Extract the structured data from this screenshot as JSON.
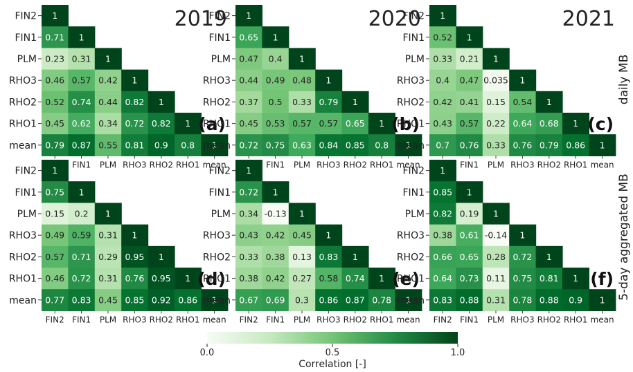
{
  "colors": {
    "low": "#f7fcf5",
    "high": "#00441b",
    "text_dark": "#222222",
    "text_light": "#ffffff"
  },
  "chart_data": {
    "type": "heatmap",
    "labels": [
      "FIN2",
      "FIN1",
      "PLM",
      "RHO3",
      "RHO2",
      "RHO1",
      "mean"
    ],
    "row_titles": [
      "daily MB",
      "5-day aggregated MB"
    ],
    "colorbar": {
      "title": "Correlation [-]",
      "range": [
        0.0,
        1.0
      ],
      "ticks": [
        "0.0",
        "0.5",
        "1.0"
      ]
    },
    "panels": [
      {
        "id": "(a)",
        "year": "2019",
        "matrix": [
          [
            "1"
          ],
          [
            "0.71",
            "1"
          ],
          [
            "0.23",
            "0.31",
            "1"
          ],
          [
            "0.46",
            "0.57",
            "0.42",
            "1"
          ],
          [
            "0.52",
            "0.74",
            "0.44",
            "0.82",
            "1"
          ],
          [
            "0.45",
            "0.62",
            "0.34",
            "0.72",
            "0.82",
            "1"
          ],
          [
            "0.79",
            "0.87",
            "0.55",
            "0.81",
            "0.9",
            "0.8",
            "1"
          ]
        ]
      },
      {
        "id": "(b)",
        "year": "2020",
        "matrix": [
          [
            "1"
          ],
          [
            "0.65",
            "1"
          ],
          [
            "0.47",
            "0.4",
            "1"
          ],
          [
            "0.44",
            "0.49",
            "0.48",
            "1"
          ],
          [
            "0.37",
            "0.5",
            "0.33",
            "0.79",
            "1"
          ],
          [
            "0.45",
            "0.53",
            "0.57",
            "0.57",
            "0.65",
            "1"
          ],
          [
            "0.72",
            "0.75",
            "0.63",
            "0.84",
            "0.85",
            "0.8",
            "1"
          ]
        ]
      },
      {
        "id": "(c)",
        "year": "2021",
        "matrix": [
          [
            "1"
          ],
          [
            "0.52",
            "1"
          ],
          [
            "0.33",
            "0.21",
            "1"
          ],
          [
            "0.4",
            "0.47",
            "0.035",
            "1"
          ],
          [
            "0.42",
            "0.41",
            "0.15",
            "0.54",
            "1"
          ],
          [
            "0.43",
            "0.57",
            "0.22",
            "0.64",
            "0.68",
            "1"
          ],
          [
            "0.7",
            "0.76",
            "0.33",
            "0.76",
            "0.79",
            "0.86",
            "1"
          ]
        ]
      },
      {
        "id": "(d)",
        "year": "",
        "matrix": [
          [
            "1"
          ],
          [
            "0.75",
            "1"
          ],
          [
            "0.15",
            "0.2",
            "1"
          ],
          [
            "0.49",
            "0.59",
            "0.31",
            "1"
          ],
          [
            "0.57",
            "0.71",
            "0.29",
            "0.95",
            "1"
          ],
          [
            "0.46",
            "0.72",
            "0.31",
            "0.76",
            "0.95",
            "1"
          ],
          [
            "0.77",
            "0.83",
            "0.45",
            "0.85",
            "0.92",
            "0.86",
            "1"
          ]
        ]
      },
      {
        "id": "(e)",
        "year": "",
        "matrix": [
          [
            "1"
          ],
          [
            "0.72",
            "1"
          ],
          [
            "0.34",
            "-0.13",
            "1"
          ],
          [
            "0.43",
            "0.42",
            "0.45",
            "1"
          ],
          [
            "0.33",
            "0.38",
            "0.13",
            "0.83",
            "1"
          ],
          [
            "0.38",
            "0.42",
            "0.27",
            "0.58",
            "0.74",
            "1"
          ],
          [
            "0.67",
            "0.69",
            "0.3",
            "0.86",
            "0.87",
            "0.78",
            "1"
          ]
        ]
      },
      {
        "id": "(f)",
        "year": "",
        "matrix": [
          [
            "1"
          ],
          [
            "0.85",
            "1"
          ],
          [
            "0.82",
            "0.19",
            "1"
          ],
          [
            "0.38",
            "0.61",
            "-0.14",
            "1"
          ],
          [
            "0.66",
            "0.65",
            "0.28",
            "0.72",
            "1"
          ],
          [
            "0.64",
            "0.73",
            "0.11",
            "0.75",
            "0.81",
            "1"
          ],
          [
            "0.83",
            "0.88",
            "0.31",
            "0.78",
            "0.88",
            "0.9",
            "1"
          ]
        ]
      }
    ]
  }
}
